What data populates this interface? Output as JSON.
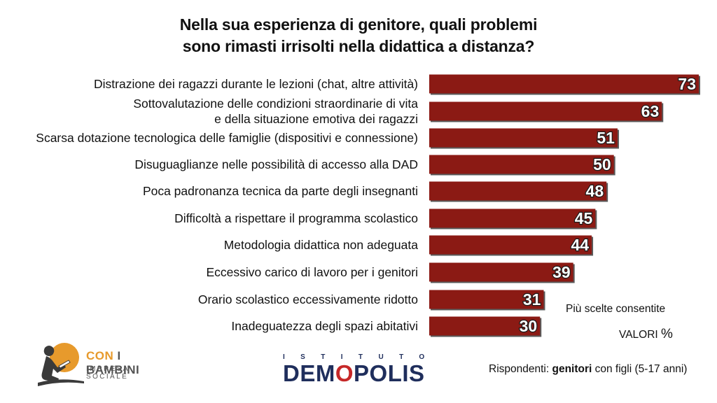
{
  "chart_data": {
    "type": "bar",
    "orientation": "horizontal",
    "title_lines": [
      "Nella sua esperienza di genitore, quali problemi",
      "sono rimasti irrisolti nella didattica a distanza?"
    ],
    "categories": [
      [
        "Distrazione dei ragazzi durante le lezioni (chat, altre attività)"
      ],
      [
        "Sottovalutazione delle condizioni straordinarie di vita",
        "e della situazione emotiva dei ragazzi"
      ],
      [
        "Scarsa dotazione tecnologica delle famiglie (dispositivi e connessione)"
      ],
      [
        "Disuguaglianze nelle possibilità di accesso alla DAD"
      ],
      [
        "Poca padronanza tecnica da parte degli insegnanti"
      ],
      [
        "Difficoltà a rispettare il programma scolastico"
      ],
      [
        "Metodologia didattica non adeguata"
      ],
      [
        "Eccessivo carico di lavoro per i genitori"
      ],
      [
        "Orario scolastico eccessivamente ridotto"
      ],
      [
        "Inadeguatezza degli spazi abitativi"
      ]
    ],
    "values": [
      73,
      63,
      51,
      50,
      48,
      45,
      44,
      39,
      31,
      30
    ],
    "bar_color": "#8b1a14",
    "xlim": [
      0,
      73
    ],
    "grid": false,
    "notes": {
      "multi": "Più scelte consentite",
      "values_label": "VALORI",
      "values_unit": "%"
    }
  },
  "footer": {
    "respondents_prefix": "Rispondenti: ",
    "respondents_bold": "genitori",
    "respondents_suffix": " con figli (5-17 anni)"
  },
  "logos": {
    "con_i_bambini": {
      "brand_con": "CON",
      "brand_rest": " I BAMBINI",
      "sub": "IMPRESA SOCIALE",
      "colors": {
        "orange": "#e79a2c",
        "dark": "#555555"
      }
    },
    "demopolis": {
      "istituto": "ISTITUTO",
      "name_a": "DEM",
      "name_o": "O",
      "name_b": "POLIS",
      "colors": {
        "navy": "#1f2e5c",
        "red": "#c62828"
      }
    }
  }
}
